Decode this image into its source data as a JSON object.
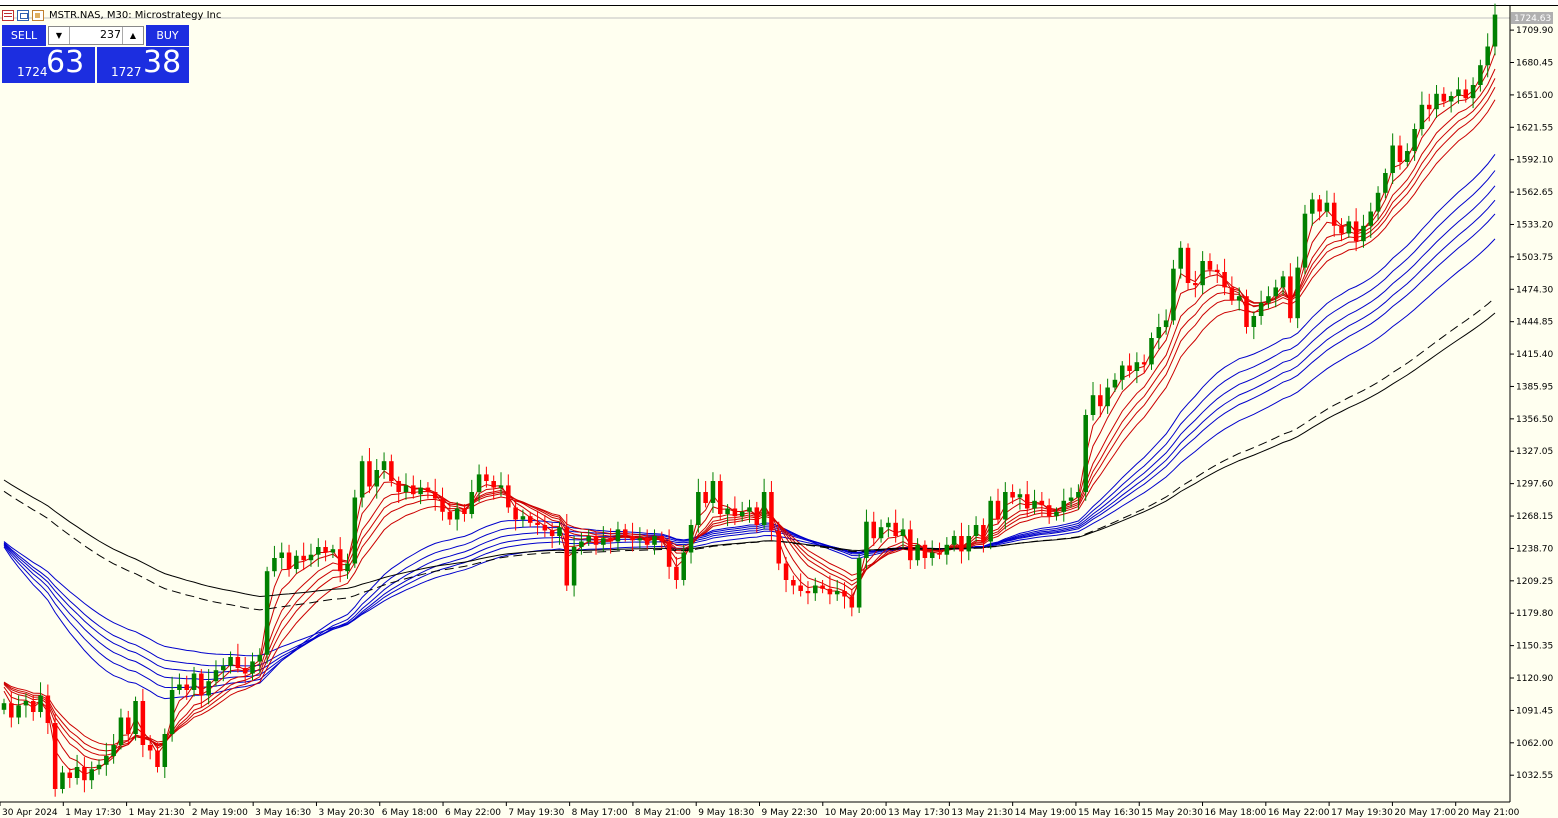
{
  "window": {
    "title": "MSTR.NAS, M30:  Microstrategy Inc",
    "icons": [
      "list-icon",
      "window-icon",
      "chart-icon"
    ]
  },
  "trade_panel": {
    "sell_label": "SELL",
    "buy_label": "BUY",
    "lot_value": "237",
    "sell_price_small": "1724",
    "sell_price_big": "63",
    "buy_price_small": "1727",
    "buy_price_big": "38",
    "color": "#1c2ee0"
  },
  "price_axis": {
    "current_price": "1724.63",
    "labels": [
      "1709.90",
      "1680.45",
      "1651.00",
      "1621.55",
      "1592.10",
      "1562.65",
      "1533.20",
      "1503.75",
      "1474.30",
      "1444.85",
      "1415.40",
      "1385.95",
      "1356.50",
      "1327.05",
      "1297.60",
      "1268.15",
      "1238.70",
      "1209.25",
      "1179.80",
      "1150.35",
      "1120.90",
      "1091.45",
      "1062.00",
      "1032.55"
    ]
  },
  "time_axis": {
    "labels": [
      "30 Apr 2024",
      "1 May 17:30",
      "1 May 21:30",
      "2 May 19:00",
      "3 May 16:30",
      "3 May 20:30",
      "6 May 18:00",
      "6 May 22:00",
      "7 May 19:30",
      "8 May 17:00",
      "8 May 21:00",
      "9 May 18:30",
      "9 May 22:30",
      "10 May 20:00",
      "13 May 17:30",
      "13 May 21:30",
      "14 May 19:00",
      "15 May 16:30",
      "15 May 20:30",
      "16 May 18:00",
      "16 May 22:00",
      "17 May 19:30",
      "20 May 17:00",
      "20 May 21:00"
    ]
  },
  "chart_data": {
    "type": "candlestick",
    "symbol": "MSTR.NAS",
    "timeframe": "M30",
    "ylim": [
      1010,
      1730
    ],
    "colors": {
      "bull": "#008000",
      "bear": "#ff0000",
      "short_ma": "#cc0000",
      "long_ma": "#0000cc",
      "slow_ma": "#000000",
      "background": "#fffff0"
    },
    "close": [
      1098,
      1085,
      1096,
      1100,
      1090,
      1105,
      1080,
      1020,
      1035,
      1030,
      1040,
      1028,
      1038,
      1042,
      1050,
      1060,
      1085,
      1070,
      1100,
      1060,
      1055,
      1040,
      1070,
      1110,
      1115,
      1110,
      1125,
      1105,
      1118,
      1128,
      1132,
      1140,
      1130,
      1125,
      1136,
      1142,
      1218,
      1230,
      1235,
      1220,
      1232,
      1228,
      1233,
      1240,
      1235,
      1238,
      1218,
      1225,
      1285,
      1318,
      1295,
      1310,
      1318,
      1300,
      1290,
      1296,
      1288,
      1294,
      1290,
      1284,
      1272,
      1265,
      1275,
      1270,
      1290,
      1306,
      1300,
      1294,
      1296,
      1276,
      1265,
      1268,
      1262,
      1260,
      1255,
      1250,
      1258,
      1205,
      1240,
      1245,
      1250,
      1242,
      1248,
      1245,
      1256,
      1250,
      1246,
      1248,
      1242,
      1250,
      1245,
      1222,
      1210,
      1235,
      1260,
      1290,
      1280,
      1300,
      1270,
      1275,
      1268,
      1272,
      1276,
      1260,
      1290,
      1255,
      1225,
      1210,
      1205,
      1200,
      1198,
      1205,
      1202,
      1197,
      1200,
      1195,
      1185,
      1230,
      1263,
      1248,
      1258,
      1262,
      1250,
      1256,
      1228,
      1242,
      1230,
      1235,
      1233,
      1242,
      1250,
      1236,
      1250,
      1260,
      1245,
      1282,
      1265,
      1290,
      1285,
      1288,
      1275,
      1282,
      1278,
      1268,
      1272,
      1282,
      1285,
      1290,
      1360,
      1378,
      1368,
      1385,
      1392,
      1405,
      1400,
      1408,
      1406,
      1430,
      1440,
      1446,
      1493,
      1512,
      1480,
      1478,
      1500,
      1492,
      1490,
      1476,
      1464,
      1468,
      1440,
      1450,
      1462,
      1468,
      1476,
      1486,
      1448,
      1494,
      1543,
      1556,
      1545,
      1553,
      1532,
      1525,
      1536,
      1518,
      1532,
      1545,
      1562,
      1580,
      1605,
      1590,
      1600,
      1620,
      1642,
      1638,
      1652,
      1645,
      1650,
      1656,
      1648,
      1660,
      1678,
      1695,
      1724
    ],
    "ma_short_count": 6,
    "ma_long_count": 6,
    "ma_slow_count": 2
  }
}
